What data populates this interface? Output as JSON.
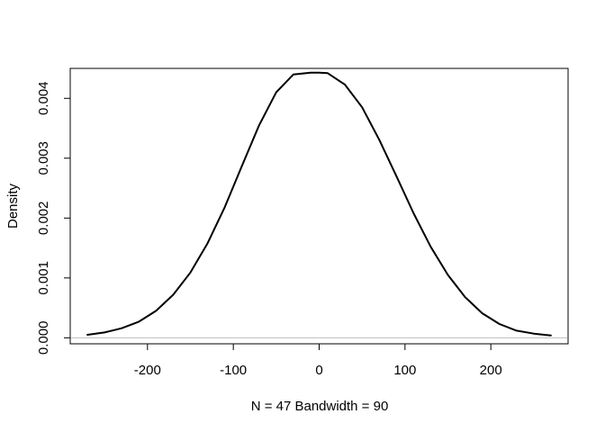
{
  "chart_data": {
    "type": "line",
    "title": "",
    "xlabel": "N = 47   Bandwidth = 90",
    "ylabel": "Density",
    "xlim": [
      -290,
      290
    ],
    "ylim": [
      -0.0001,
      0.0045
    ],
    "x_ticks": [
      -200,
      -100,
      0,
      100,
      200
    ],
    "x_tick_labels": [
      "-200",
      "-100",
      "0",
      "100",
      "200"
    ],
    "y_ticks": [
      0.0,
      0.001,
      0.002,
      0.003,
      0.004
    ],
    "y_tick_labels": [
      "0.000",
      "0.001",
      "0.002",
      "0.003",
      "0.004"
    ],
    "grid": false,
    "reference_line": {
      "y": 0,
      "color": "#bebebe"
    },
    "series": [
      {
        "color": "#000000",
        "x": [
          -270,
          -250,
          -230,
          -210,
          -190,
          -170,
          -150,
          -130,
          -110,
          -90,
          -70,
          -50,
          -30,
          -10,
          0,
          10,
          30,
          50,
          70,
          90,
          110,
          130,
          150,
          170,
          190,
          210,
          230,
          250,
          270
        ],
        "y": [
          5e-05,
          9e-05,
          0.00016,
          0.00027,
          0.00045,
          0.00072,
          0.00109,
          0.00158,
          0.00218,
          0.00287,
          0.00355,
          0.0041,
          0.0044,
          0.00443,
          0.00443,
          0.00442,
          0.00423,
          0.00385,
          0.00331,
          0.0027,
          0.00208,
          0.00152,
          0.00105,
          0.00068,
          0.00041,
          0.00023,
          0.00012,
          7e-05,
          4e-05
        ]
      }
    ]
  }
}
